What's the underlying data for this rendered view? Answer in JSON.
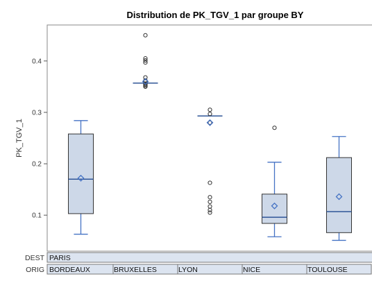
{
  "chart_data": {
    "type": "box",
    "title": "Distribution de PK_TGV_1 par groupe BY",
    "ylabel": "PK_TGV_1",
    "ylim": [
      0.03,
      0.47
    ],
    "yticks": [
      "0.1",
      "0.2",
      "0.3",
      "0.4"
    ],
    "colors": {
      "box_fill": "#cdd8e8",
      "box_edge": "#333333",
      "whisker": "#4472c4",
      "median": "#2f5597",
      "mean": "#4472c4",
      "outlier": "#333333",
      "band_fill": "#dce4f0"
    },
    "dest": {
      "label": "DEST",
      "value": "PARIS"
    },
    "orig": {
      "label": "ORIG"
    },
    "groups": [
      {
        "name": "BORDEAUX",
        "min": 0.063,
        "q1": 0.103,
        "median": 0.17,
        "q3": 0.258,
        "max": 0.284,
        "mean": 0.172,
        "outliers": []
      },
      {
        "name": "BRUXELLES",
        "min": 0.357,
        "q1": 0.357,
        "median": 0.357,
        "q3": 0.357,
        "max": 0.357,
        "mean": 0.36,
        "outliers": [
          0.35,
          0.352,
          0.354,
          0.356,
          0.36,
          0.362,
          0.368,
          0.397,
          0.401,
          0.405,
          0.45
        ]
      },
      {
        "name": "LYON",
        "min": 0.293,
        "q1": 0.293,
        "median": 0.293,
        "q3": 0.293,
        "max": 0.293,
        "mean": 0.28,
        "outliers": [
          0.105,
          0.11,
          0.117,
          0.126,
          0.135,
          0.163,
          0.28,
          0.297,
          0.305
        ]
      },
      {
        "name": "NICE",
        "min": 0.058,
        "q1": 0.084,
        "median": 0.096,
        "q3": 0.141,
        "max": 0.203,
        "mean": 0.118,
        "outliers": [
          0.27
        ]
      },
      {
        "name": "TOULOUSE",
        "min": 0.051,
        "q1": 0.066,
        "median": 0.107,
        "q3": 0.212,
        "max": 0.253,
        "mean": 0.136,
        "outliers": []
      }
    ]
  }
}
